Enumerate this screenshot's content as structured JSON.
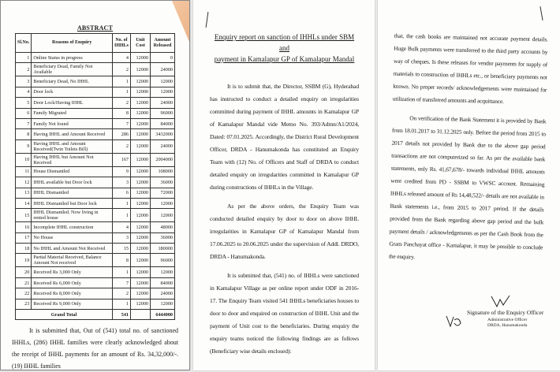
{
  "page1": {
    "abstract_title": "ABSTRACT",
    "table": {
      "headers": [
        "Sl.No.",
        "Reasons of Enquiry",
        "No. of IHHLs",
        "Unit Cost",
        "Amount Released"
      ],
      "rows": [
        [
          "1",
          "Online Status in progress",
          "4",
          "12000",
          "0"
        ],
        [
          "2",
          "Beneficiary Dead, Family Not Available",
          "2",
          "12000",
          "24000"
        ],
        [
          "3",
          "Beneficiary Dead, No IHHL",
          "1",
          "12000",
          "12000"
        ],
        [
          "4",
          "Door lock",
          "1",
          "12000",
          "12000"
        ],
        [
          "5",
          "Door Lock/Having IHHL",
          "2",
          "12000",
          "24000"
        ],
        [
          "6",
          "Family Migrated",
          "8",
          "12000",
          "96000"
        ],
        [
          "7",
          "Family Not found",
          "7",
          "12000",
          "84000"
        ],
        [
          "8",
          "Having IHHL and Amount Received",
          "286",
          "12000",
          "3432000"
        ],
        [
          "9",
          "Having IHHL and Amount Received(Twin Toilets Bill)",
          "2",
          "12000",
          "24000"
        ],
        [
          "10",
          "Having IHHL but Amount Not Received",
          "167",
          "12000",
          "2004000"
        ],
        [
          "11",
          "House Dismantled",
          "9",
          "12000",
          "108000"
        ],
        [
          "12",
          "IHHL available but Door lock",
          "3",
          "12000",
          "36000"
        ],
        [
          "13",
          "IHHL Dismantled",
          "6",
          "12000",
          "72000"
        ],
        [
          "14",
          "IHHL Dismantled but Door lock",
          "1",
          "12000",
          "12000"
        ],
        [
          "15",
          "IHHL Dismantled. Now living in rented house",
          "1",
          "12000",
          "12000"
        ],
        [
          "16",
          "Incomplete IHHL construction",
          "4",
          "12000",
          "48000"
        ],
        [
          "17",
          "No House",
          "3",
          "12000",
          "36000"
        ],
        [
          "18",
          "No IHHL and Amount Not Received",
          "15",
          "12000",
          "180000"
        ],
        [
          "19",
          "Partial Material Received, Balance Amount Not received",
          "8",
          "12000",
          "96000"
        ],
        [
          "20",
          "Received Rs 3,000 Only",
          "1",
          "12000",
          "12000"
        ],
        [
          "21",
          "Received Rs 6,000 Only",
          "7",
          "12000",
          "84000"
        ],
        [
          "22",
          "Received Rs 8,000 Only",
          "2",
          "12000",
          "24000"
        ],
        [
          "23",
          "Received Rs 9,000 Only",
          "1",
          "12000",
          "12000"
        ]
      ],
      "total": {
        "label": "Grand Total",
        "count": "541",
        "amount": "6444000"
      }
    },
    "closing_text": "It is submitted that, Out of (541) total no. of sanctioned IHHLs, (286) IHHL families were clearly acknowledged about the receipt of IHHL payments for an amount of Rs. 34,32,000/-. (19) IHHL families"
  },
  "page2": {
    "title_line1": "Enquiry report on sanction of IHHLs under SBM and",
    "title_line2": "payment in Kamalapur GP of Kamalapur Mandal",
    "para1": "It is to submit that, the Director, SSBM (G), Hyderabad has instructed to conduct a detailed enquiry on irregularities committed during payment of IHHL amounts in Kamalapur GP of Kamalapur Mandal vide Memo No. 393/Admn/A1/2024, Dated: 07.01.2025. Accordingly, the District Rural Development Officer, DRDA - Hanumakonda has constituted an Enquiry Team with (12) No. of Officers and Staff of DRDA to conduct detailed enquiry on irregularities committed in Kamalapur GP during constructions of IHHLs in the Village.",
    "para2": "As per the above orders, the Enquiry Team was conducted detailed enquiry by door to door on above IHHL irregularities in Kamalapur GP of Kamalapur Mandal from 17.06.2025 to 20.06.2025 under the supervision of Addl. DRDO, DRDA - Hanumakonda.",
    "para3": "It is submitted that, (541) no. of IHHLs were sanctioned in Kamalapur Village as per online report under ODF in 2016-17. The Enquiry Team visited 541 IHHLs beneficiaries houses to door to door and enquired on construction of IHHL Unit and the payment of Unit cost to the beneficiaries. During enquiry the enquiry teams noticed the following findings are as follows (Beneficiary wise details enclosed):"
  },
  "page3": {
    "para1": "that, the cash books are maintained not accurate payment details. Huge Bulk payments were transferred to the third party accounts by way of cheques. Is these releases for vendor payments for supply of materials to construction of IHHLs etc., or beneficiary payments not known. No proper records/ acknowledgements were maintained for utilization of transferred amounts and acquittance.",
    "para2": "On verification of the Bank Statement it is provided by Bank from 18.01.2017 to 31.12.2025 only. Before the period from 2015 to 2017 details not provided by Bank due to the above gap period transactions are not computerized so far. As per the available bank statements, only Rs. 41,67,678/- towards individual IHHL amounts were credited from PD - SSBM to VWSC account. Remaining IHHLs released amount of Rs 14,48,522/- details are not available in Bank statements i.e., from 2015 to 2017 period. If the details provided from the Bank regarding above gap period and the bulk payment details / acknowledgements as per the Cash Book from the Gram Panchayat office - Kamalapur, it may be possible to conclude the enquiry.",
    "signature_title": "Signature of the Enquiry Officer",
    "signature_designation": "Administrative Officer",
    "signature_office": "DRDA, Hanumakonda"
  }
}
